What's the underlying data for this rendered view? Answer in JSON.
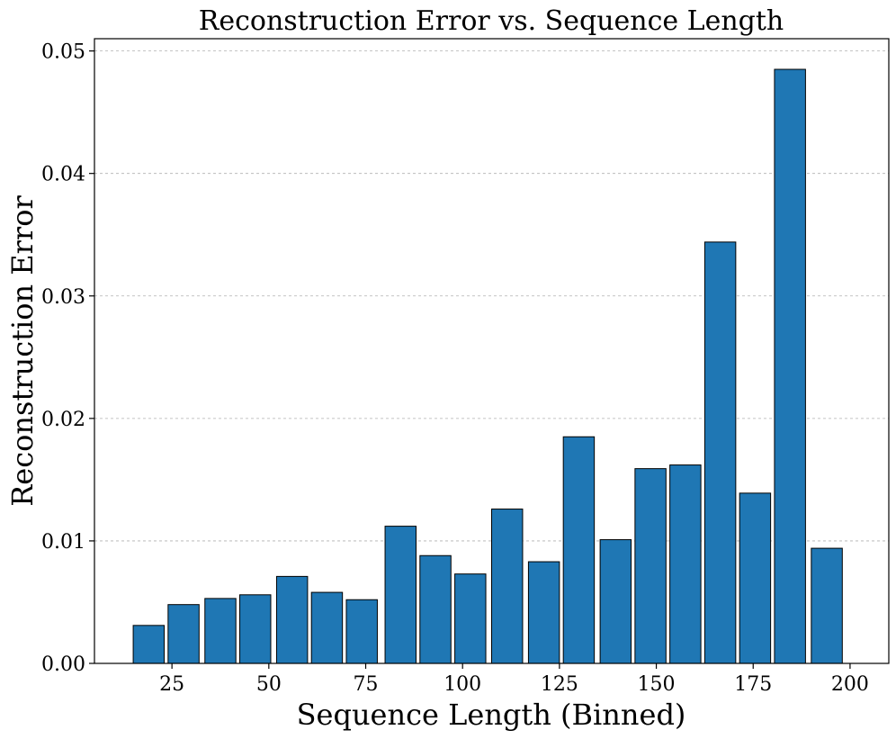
{
  "chart_data": {
    "type": "bar",
    "title": "Reconstruction Error vs. Sequence Length",
    "xlabel": "Sequence Length (Binned)",
    "ylabel": "Reconstruction Error",
    "xlim": [
      5,
      210
    ],
    "ylim": [
      0,
      0.051
    ],
    "grid": "y",
    "bar_width": 8,
    "x_ticks": [
      {
        "value": 25,
        "label": "25"
      },
      {
        "value": 50,
        "label": "50"
      },
      {
        "value": 75,
        "label": "75"
      },
      {
        "value": 100,
        "label": "100"
      },
      {
        "value": 125,
        "label": "125"
      },
      {
        "value": 150,
        "label": "150"
      },
      {
        "value": 175,
        "label": "175"
      },
      {
        "value": 200,
        "label": "200"
      }
    ],
    "y_ticks": [
      {
        "value": 0.0,
        "label": "0.00"
      },
      {
        "value": 0.01,
        "label": "0.01"
      },
      {
        "value": 0.02,
        "label": "0.02"
      },
      {
        "value": 0.03,
        "label": "0.03"
      },
      {
        "value": 0.04,
        "label": "0.04"
      },
      {
        "value": 0.05,
        "label": "0.05"
      }
    ],
    "x": [
      19,
      28,
      37.5,
      46.5,
      56,
      65,
      74,
      84,
      93,
      102,
      111.5,
      121,
      130,
      139.5,
      148.5,
      157.5,
      166.5,
      175.5,
      184.5,
      194
    ],
    "values": [
      0.0031,
      0.0048,
      0.0053,
      0.0056,
      0.0071,
      0.0058,
      0.0052,
      0.0112,
      0.0088,
      0.0073,
      0.0126,
      0.0083,
      0.0185,
      0.0101,
      0.0159,
      0.0162,
      0.0344,
      0.0139,
      0.0485,
      0.0094
    ],
    "colors": {
      "bar": "#1f77b4",
      "edge": "#000000"
    }
  }
}
